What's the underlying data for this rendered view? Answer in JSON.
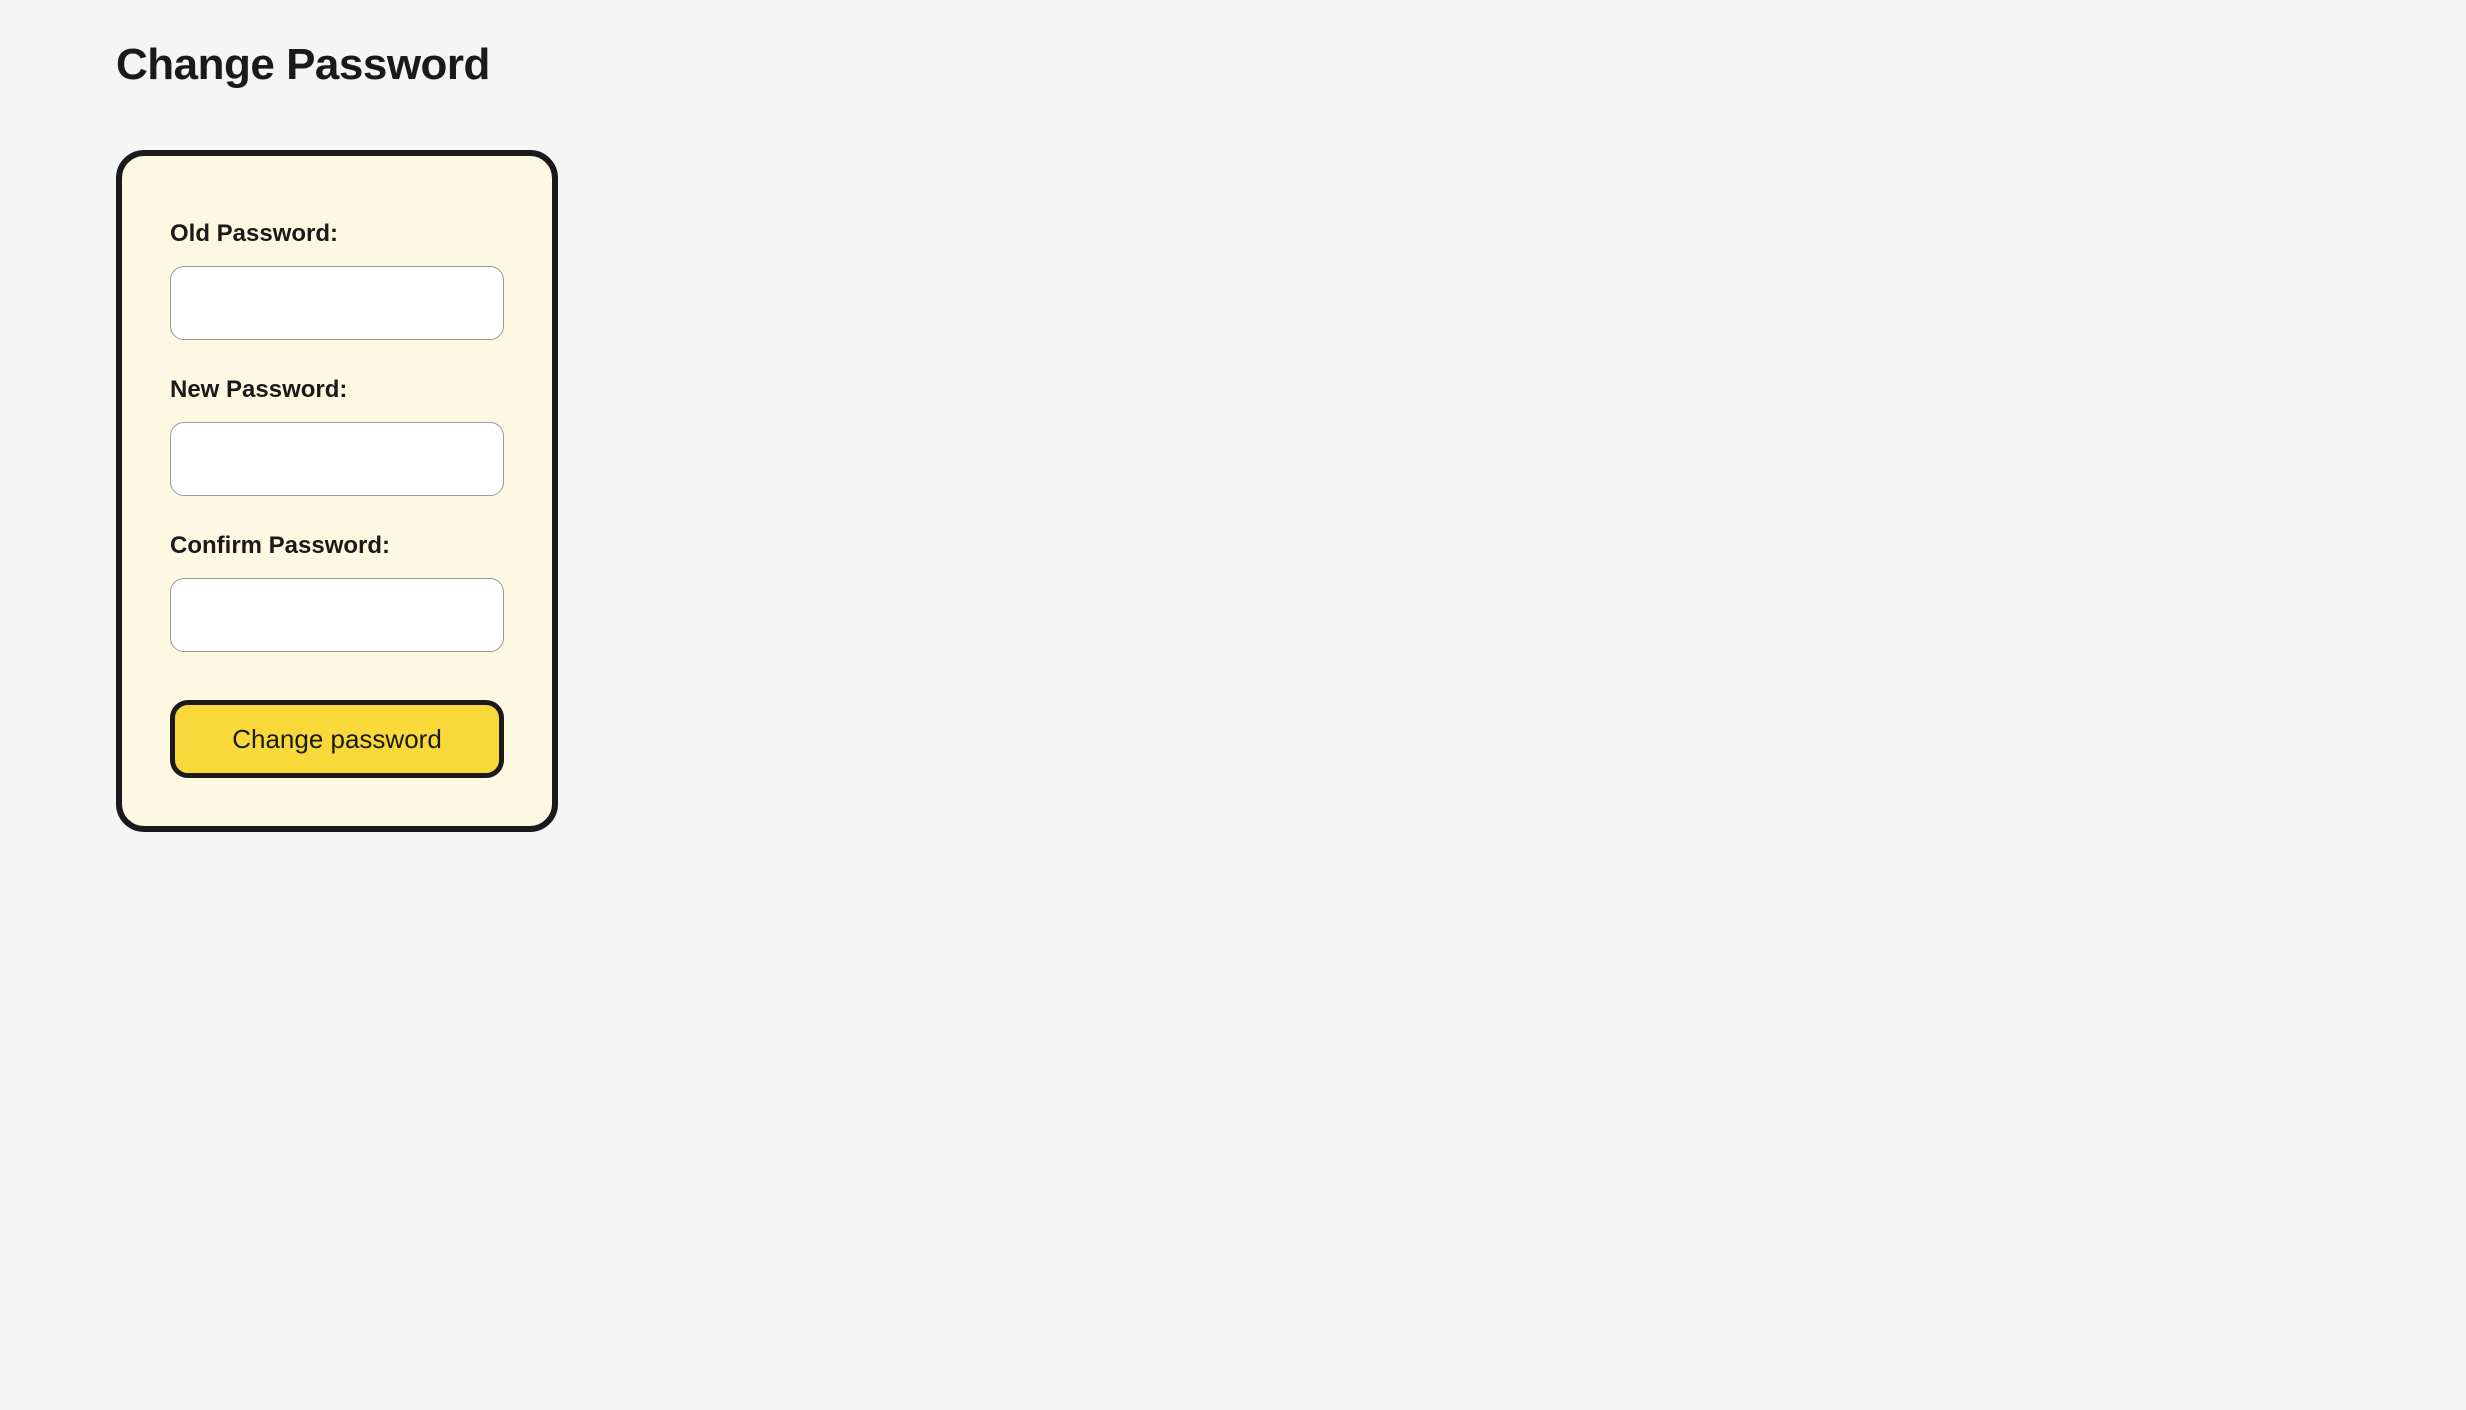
{
  "page": {
    "title": "Change Password",
    "background_color": "#f5f5f5"
  },
  "form": {
    "card_background": "#fdf8e1",
    "card_border_color": "#1a1a1a",
    "fields": {
      "old_password": {
        "label": "Old Password:",
        "value": ""
      },
      "new_password": {
        "label": "New Password:",
        "value": ""
      },
      "confirm_password": {
        "label": "Confirm Password:",
        "value": ""
      }
    },
    "submit": {
      "label": "Change password",
      "background_color": "#f8d939",
      "border_color": "#1a1a1a"
    }
  }
}
